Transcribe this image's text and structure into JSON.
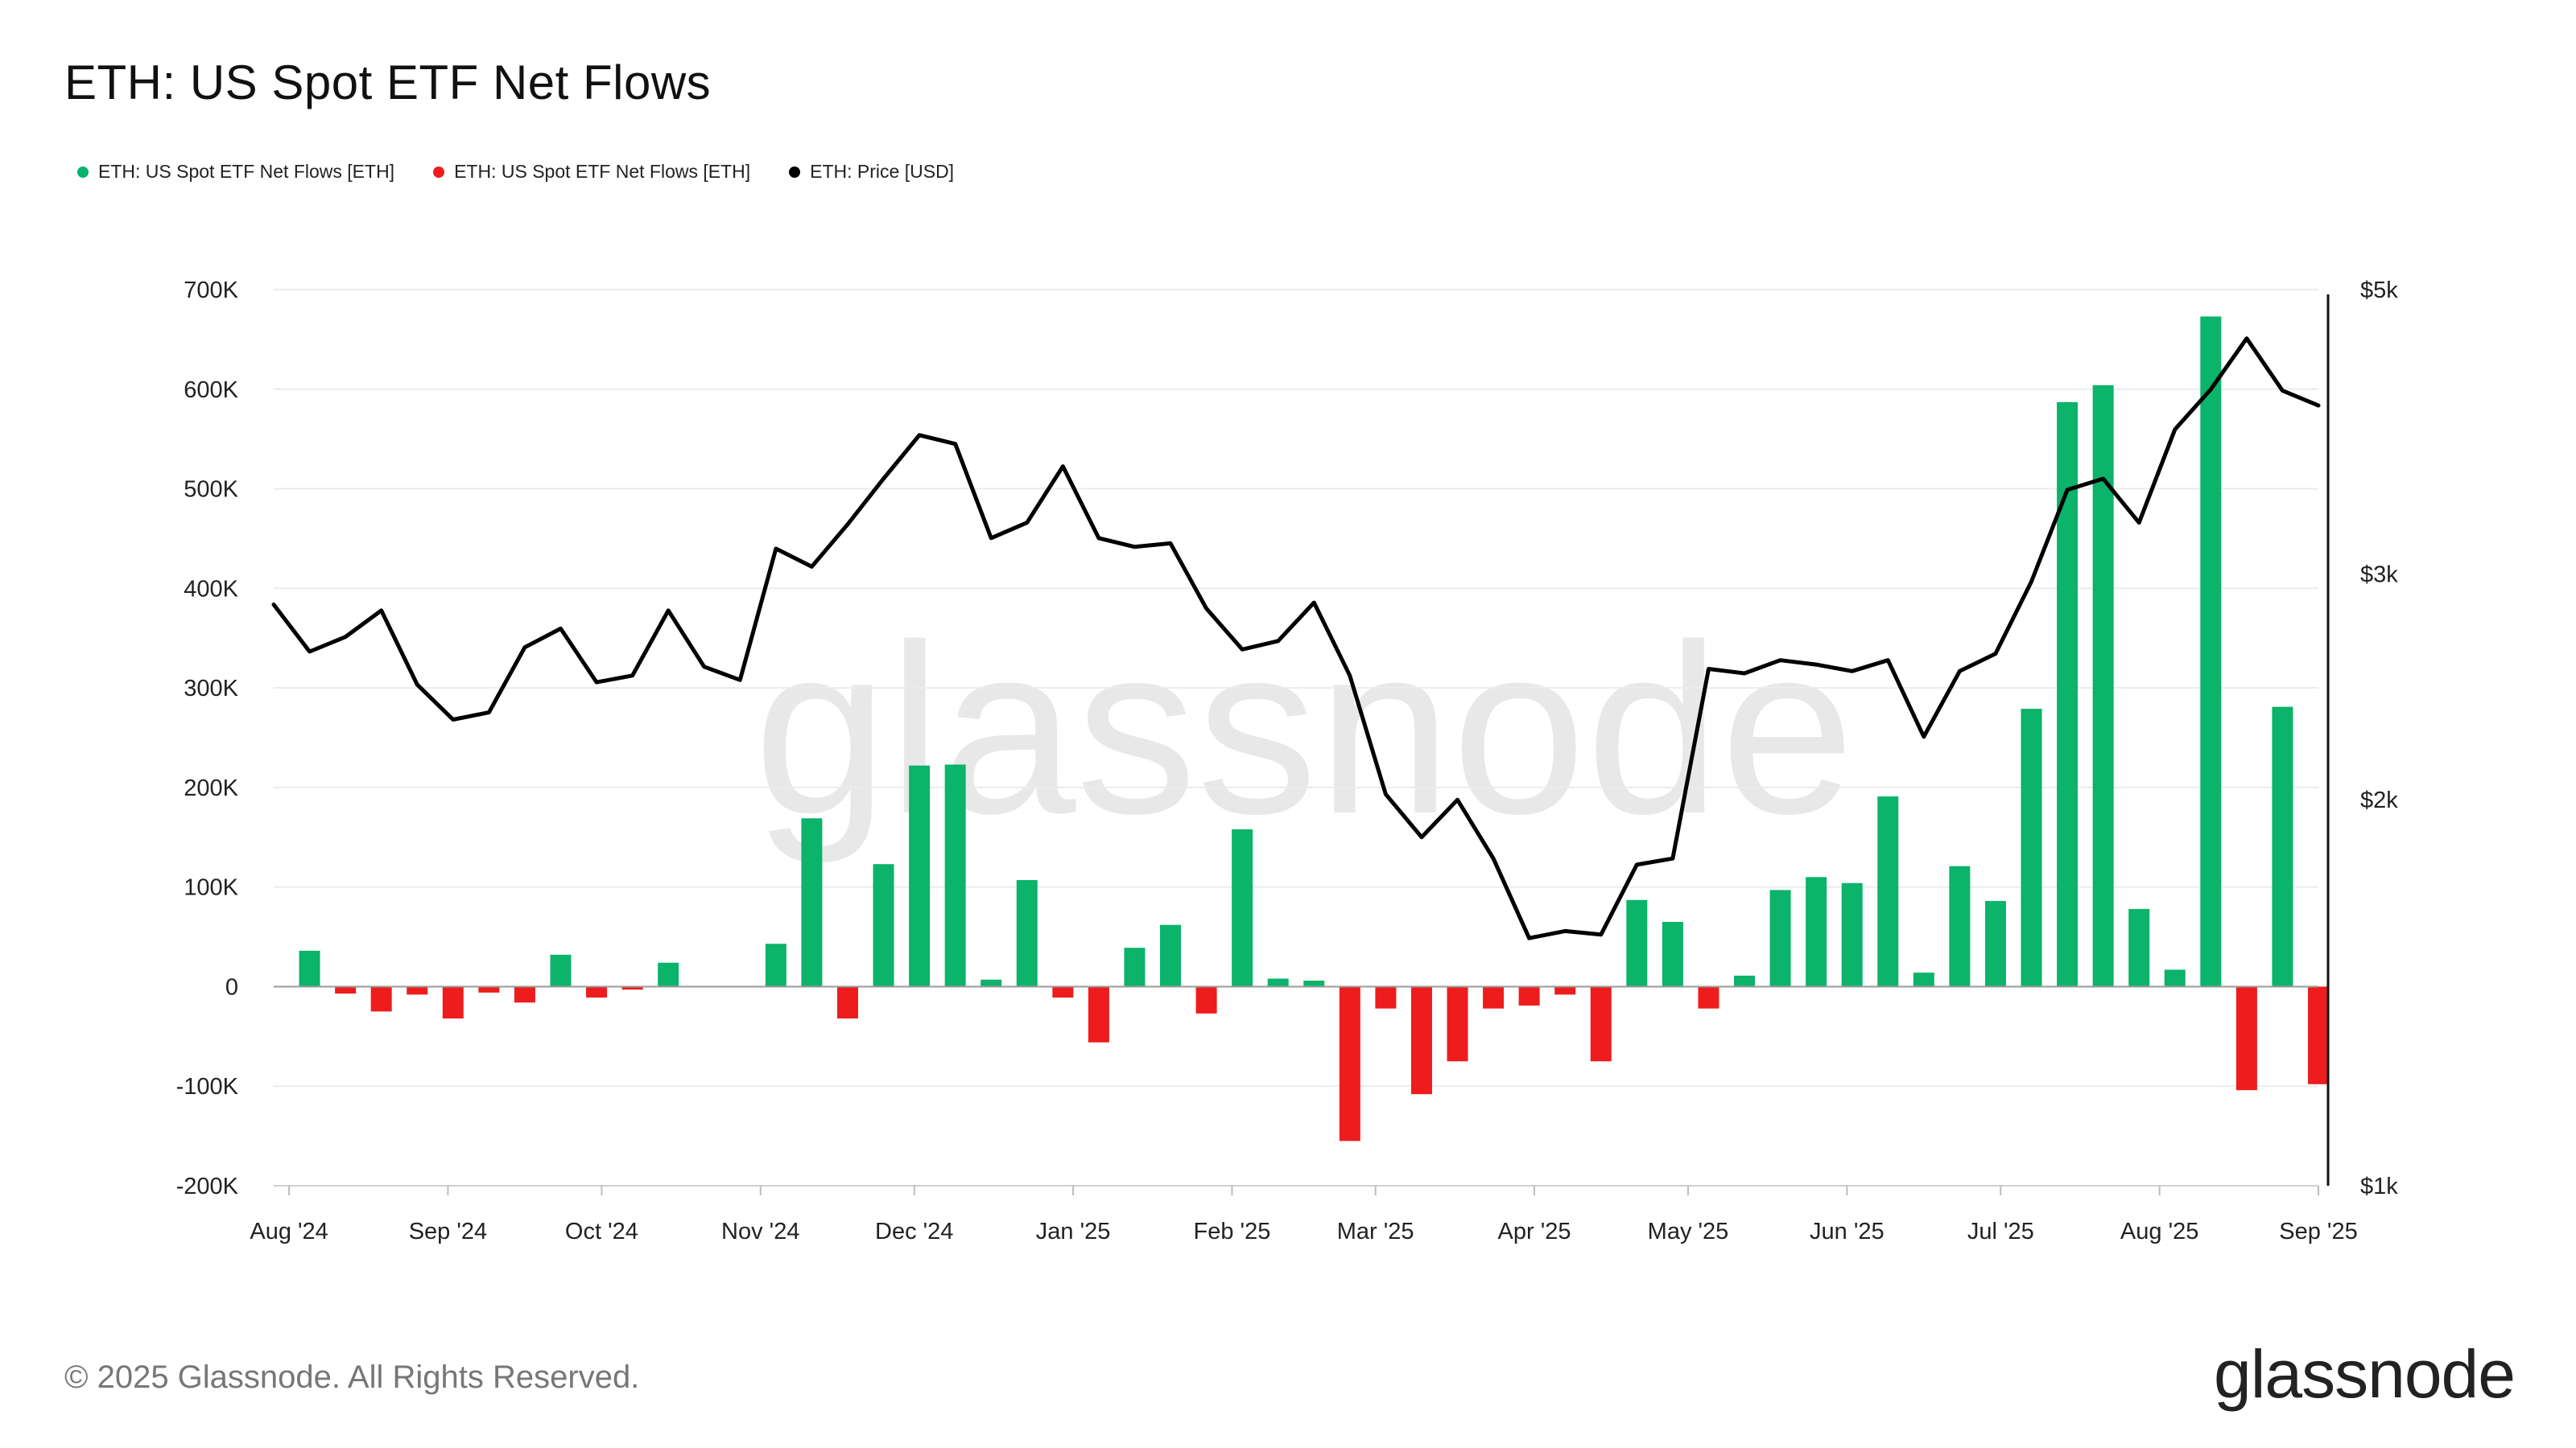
{
  "title": "ETH: US Spot ETF Net Flows",
  "legend": [
    {
      "label": "ETH: US Spot ETF Net Flows [ETH]",
      "color": "#0bb36b"
    },
    {
      "label": "ETH: US Spot ETF Net Flows [ETH]",
      "color": "#ee1c1c"
    },
    {
      "label": "ETH: Price [USD]",
      "color": "#000000"
    }
  ],
  "watermark": "glassnode",
  "copyright": "© 2025 Glassnode. All Rights Reserved.",
  "logo": "glassnode",
  "chart_data": {
    "type": "bar",
    "title": "ETH: US Spot ETF Net Flows",
    "x_range": [
      "2024-07-29",
      "2025-09-01"
    ],
    "x_ticks": [
      {
        "date": "2024-08-01",
        "label": "Aug '24"
      },
      {
        "date": "2024-09-01",
        "label": "Sep '24"
      },
      {
        "date": "2024-10-01",
        "label": "Oct '24"
      },
      {
        "date": "2024-11-01",
        "label": "Nov '24"
      },
      {
        "date": "2024-12-01",
        "label": "Dec '24"
      },
      {
        "date": "2025-01-01",
        "label": "Jan '25"
      },
      {
        "date": "2025-02-01",
        "label": "Feb '25"
      },
      {
        "date": "2025-03-01",
        "label": "Mar '25"
      },
      {
        "date": "2025-04-01",
        "label": "Apr '25"
      },
      {
        "date": "2025-05-01",
        "label": "May '25"
      },
      {
        "date": "2025-06-01",
        "label": "Jun '25"
      },
      {
        "date": "2025-07-01",
        "label": "Jul '25"
      },
      {
        "date": "2025-08-01",
        "label": "Aug '25"
      },
      {
        "date": "2025-09-01",
        "label": "Sep '25"
      }
    ],
    "y_left": {
      "ylim": [
        -200000,
        700000
      ],
      "ticks": [
        {
          "value": 700000,
          "label": "700K"
        },
        {
          "value": 600000,
          "label": "600K"
        },
        {
          "value": 500000,
          "label": "500K"
        },
        {
          "value": 400000,
          "label": "400K"
        },
        {
          "value": 300000,
          "label": "300K"
        },
        {
          "value": 200000,
          "label": "200K"
        },
        {
          "value": 100000,
          "label": "100K"
        },
        {
          "value": 0,
          "label": "0"
        },
        {
          "value": -100000,
          "label": "-100K"
        },
        {
          "value": -200000,
          "label": "-200K"
        }
      ]
    },
    "y_right": {
      "scale": "log",
      "ylim": [
        1000,
        5000
      ],
      "ticks": [
        {
          "value": 5000,
          "label": "$5k"
        },
        {
          "value": 3000,
          "label": "$3k"
        },
        {
          "value": 2000,
          "label": "$2k"
        },
        {
          "value": 1000,
          "label": "$1k"
        }
      ]
    },
    "positive_color": "#0bb36b",
    "negative_color": "#ee1c1c",
    "price_color": "#000000",
    "bars": [
      {
        "date": "2024-08-05",
        "value": 36000
      },
      {
        "date": "2024-08-12",
        "value": -7000
      },
      {
        "date": "2024-08-19",
        "value": -25000
      },
      {
        "date": "2024-08-26",
        "value": -8000
      },
      {
        "date": "2024-09-02",
        "value": -32000
      },
      {
        "date": "2024-09-09",
        "value": -6000
      },
      {
        "date": "2024-09-16",
        "value": -16000
      },
      {
        "date": "2024-09-23",
        "value": 32000
      },
      {
        "date": "2024-09-30",
        "value": -11000
      },
      {
        "date": "2024-10-07",
        "value": -3000
      },
      {
        "date": "2024-10-14",
        "value": 24000
      },
      {
        "date": "2024-10-21",
        "value": 0
      },
      {
        "date": "2024-10-28",
        "value": 0
      },
      {
        "date": "2024-11-04",
        "value": 43000
      },
      {
        "date": "2024-11-11",
        "value": 169000
      },
      {
        "date": "2024-11-18",
        "value": -32000
      },
      {
        "date": "2024-11-25",
        "value": 123000
      },
      {
        "date": "2024-12-02",
        "value": 222000
      },
      {
        "date": "2024-12-09",
        "value": 223000
      },
      {
        "date": "2024-12-16",
        "value": 7000
      },
      {
        "date": "2024-12-23",
        "value": 107000
      },
      {
        "date": "2024-12-30",
        "value": -11000
      },
      {
        "date": "2025-01-06",
        "value": -56000
      },
      {
        "date": "2025-01-13",
        "value": 39000
      },
      {
        "date": "2025-01-20",
        "value": 62000
      },
      {
        "date": "2025-01-27",
        "value": -27000
      },
      {
        "date": "2025-02-03",
        "value": 158000
      },
      {
        "date": "2025-02-10",
        "value": 8000
      },
      {
        "date": "2025-02-17",
        "value": 6000
      },
      {
        "date": "2025-02-24",
        "value": -155000
      },
      {
        "date": "2025-03-03",
        "value": -22000
      },
      {
        "date": "2025-03-10",
        "value": -108000
      },
      {
        "date": "2025-03-17",
        "value": -75000
      },
      {
        "date": "2025-03-24",
        "value": -22000
      },
      {
        "date": "2025-03-31",
        "value": -19000
      },
      {
        "date": "2025-04-07",
        "value": -8000
      },
      {
        "date": "2025-04-14",
        "value": -75000
      },
      {
        "date": "2025-04-21",
        "value": 87000
      },
      {
        "date": "2025-04-28",
        "value": 65000
      },
      {
        "date": "2025-05-05",
        "value": -22000
      },
      {
        "date": "2025-05-12",
        "value": 11000
      },
      {
        "date": "2025-05-19",
        "value": 97000
      },
      {
        "date": "2025-05-26",
        "value": 110000
      },
      {
        "date": "2025-06-02",
        "value": 104000
      },
      {
        "date": "2025-06-09",
        "value": 191000
      },
      {
        "date": "2025-06-16",
        "value": 14000
      },
      {
        "date": "2025-06-23",
        "value": 121000
      },
      {
        "date": "2025-06-30",
        "value": 86000
      },
      {
        "date": "2025-07-07",
        "value": 279000
      },
      {
        "date": "2025-07-14",
        "value": 587000
      },
      {
        "date": "2025-07-21",
        "value": 604000
      },
      {
        "date": "2025-07-28",
        "value": 78000
      },
      {
        "date": "2025-08-04",
        "value": 17000
      },
      {
        "date": "2025-08-11",
        "value": 673000
      },
      {
        "date": "2025-08-18",
        "value": -104000
      },
      {
        "date": "2025-08-25",
        "value": 281000
      },
      {
        "date": "2025-09-01",
        "value": -98000
      }
    ],
    "price": [
      {
        "date": "2024-07-29",
        "value": 2840
      },
      {
        "date": "2024-08-05",
        "value": 2610
      },
      {
        "date": "2024-08-12",
        "value": 2680
      },
      {
        "date": "2024-08-19",
        "value": 2810
      },
      {
        "date": "2024-08-26",
        "value": 2460
      },
      {
        "date": "2024-09-02",
        "value": 2310
      },
      {
        "date": "2024-09-09",
        "value": 2340
      },
      {
        "date": "2024-09-16",
        "value": 2630
      },
      {
        "date": "2024-09-23",
        "value": 2720
      },
      {
        "date": "2024-09-30",
        "value": 2470
      },
      {
        "date": "2024-10-07",
        "value": 2500
      },
      {
        "date": "2024-10-14",
        "value": 2810
      },
      {
        "date": "2024-10-21",
        "value": 2540
      },
      {
        "date": "2024-10-28",
        "value": 2480
      },
      {
        "date": "2024-11-04",
        "value": 3140
      },
      {
        "date": "2024-11-11",
        "value": 3040
      },
      {
        "date": "2024-11-18",
        "value": 3280
      },
      {
        "date": "2024-11-25",
        "value": 3560
      },
      {
        "date": "2024-12-02",
        "value": 3850
      },
      {
        "date": "2024-12-09",
        "value": 3790
      },
      {
        "date": "2024-12-16",
        "value": 3200
      },
      {
        "date": "2024-12-23",
        "value": 3290
      },
      {
        "date": "2024-12-30",
        "value": 3640
      },
      {
        "date": "2025-01-06",
        "value": 3200
      },
      {
        "date": "2025-01-13",
        "value": 3150
      },
      {
        "date": "2025-01-20",
        "value": 3170
      },
      {
        "date": "2025-01-27",
        "value": 2820
      },
      {
        "date": "2025-02-03",
        "value": 2620
      },
      {
        "date": "2025-02-10",
        "value": 2660
      },
      {
        "date": "2025-02-17",
        "value": 2850
      },
      {
        "date": "2025-02-24",
        "value": 2500
      },
      {
        "date": "2025-03-03",
        "value": 2020
      },
      {
        "date": "2025-03-10",
        "value": 1870
      },
      {
        "date": "2025-03-17",
        "value": 2000
      },
      {
        "date": "2025-03-24",
        "value": 1800
      },
      {
        "date": "2025-03-31",
        "value": 1560
      },
      {
        "date": "2025-04-07",
        "value": 1580
      },
      {
        "date": "2025-04-14",
        "value": 1570
      },
      {
        "date": "2025-04-21",
        "value": 1780
      },
      {
        "date": "2025-04-28",
        "value": 1800
      },
      {
        "date": "2025-05-05",
        "value": 2530
      },
      {
        "date": "2025-05-12",
        "value": 2510
      },
      {
        "date": "2025-05-19",
        "value": 2570
      },
      {
        "date": "2025-05-26",
        "value": 2550
      },
      {
        "date": "2025-06-02",
        "value": 2520
      },
      {
        "date": "2025-06-09",
        "value": 2570
      },
      {
        "date": "2025-06-16",
        "value": 2240
      },
      {
        "date": "2025-06-23",
        "value": 2520
      },
      {
        "date": "2025-06-30",
        "value": 2600
      },
      {
        "date": "2025-07-07",
        "value": 2960
      },
      {
        "date": "2025-07-14",
        "value": 3490
      },
      {
        "date": "2025-07-21",
        "value": 3560
      },
      {
        "date": "2025-07-28",
        "value": 3290
      },
      {
        "date": "2025-08-04",
        "value": 3890
      },
      {
        "date": "2025-08-11",
        "value": 4180
      },
      {
        "date": "2025-08-18",
        "value": 4580
      },
      {
        "date": "2025-08-25",
        "value": 4170
      },
      {
        "date": "2025-09-01",
        "value": 4060
      }
    ]
  }
}
